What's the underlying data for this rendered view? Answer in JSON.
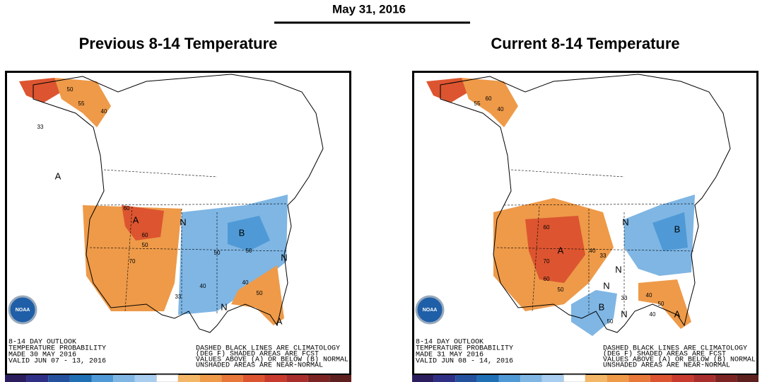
{
  "header": {
    "date": "May 31, 2016"
  },
  "panels": [
    {
      "title": "Previous 8-14 Temperature",
      "logo": "NOAA",
      "info": [
        "8-14 DAY OUTLOOK",
        "TEMPERATURE PROBABILITY",
        "MADE  30 MAY 2016",
        "VALID  JUN 07 - 13, 2016"
      ],
      "note": [
        "DASHED BLACK LINES ARE CLIMATOLOGY",
        "(DEG F) SHADED AREAS ARE FCST",
        "VALUES ABOVE (A) OR BELOW (B) NORMAL",
        "UNSHADED AREAS ARE NEAR-NORMAL"
      ],
      "labels": [
        "A",
        "A",
        "A",
        "B",
        "N",
        "N",
        "N",
        "50",
        "55",
        "40",
        "60",
        "60",
        "50",
        "70",
        "50",
        "40",
        "33",
        "50",
        "33",
        "40",
        "50"
      ]
    },
    {
      "title": "Current 8-14 Temperature",
      "logo": "NOAA",
      "info": [
        "8-14 DAY OUTLOOK",
        "TEMPERATURE PROBABILITY",
        "MADE  31 MAY 2016",
        "VALID  JUN 08 - 14, 2016"
      ],
      "note": [
        "DASHED BLACK LINES ARE CLIMATOLOGY",
        "(DEG F) SHADED AREAS ARE FCST",
        "VALUES ABOVE (A) OR BELOW (B) NORMAL",
        "UNSHADED AREAS ARE NEAR-NORMAL"
      ],
      "labels": [
        "A",
        "A",
        "B",
        "B",
        "N",
        "N",
        "N",
        "N",
        "55",
        "60",
        "40",
        "60",
        "70",
        "60",
        "50",
        "40",
        "33",
        "40",
        "50",
        "33",
        "40",
        "50"
      ]
    }
  ]
}
